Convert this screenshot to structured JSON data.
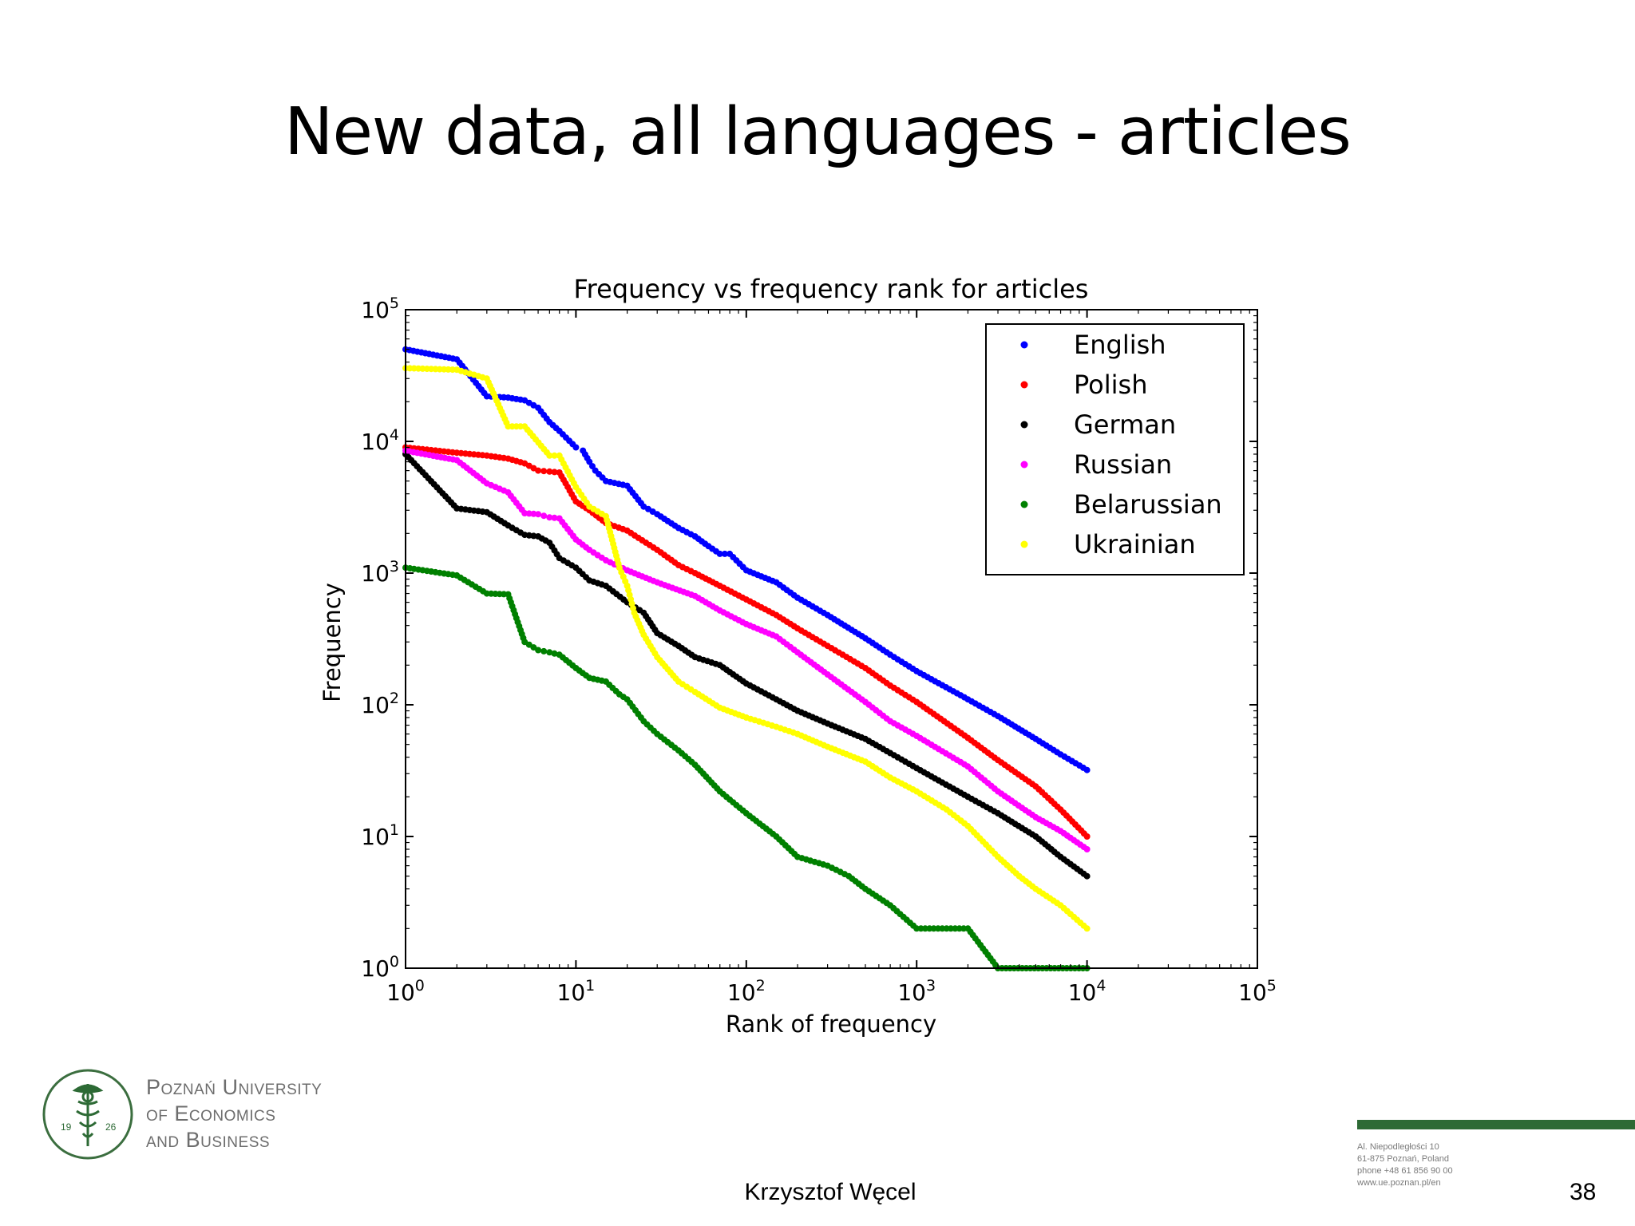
{
  "slide": {
    "title": "New data, all languages - articles",
    "author": "Krzysztof Węcel",
    "page_number": "38"
  },
  "logo": {
    "lines": [
      "Poznań University",
      "of Economics",
      "and Business"
    ],
    "year_left": "19",
    "year_right": "26"
  },
  "footer_address": {
    "lines": [
      "Al. Niepodległości 10",
      "61-875 Poznań, Poland",
      "phone +48 61 856 90 00",
      "www.ue.poznan.pl/en"
    ]
  },
  "colors": {
    "accent_green": "#2d6a35"
  },
  "chart_data": {
    "type": "scatter",
    "title": "Frequency vs frequency rank for articles",
    "xlabel": "Rank of frequency",
    "ylabel": "Frequency",
    "x_scale": "log",
    "y_scale": "log",
    "xlim": [
      1,
      100000
    ],
    "ylim": [
      1,
      100000
    ],
    "x_ticks": [
      1,
      10,
      100,
      1000,
      10000,
      100000
    ],
    "x_tick_labels": [
      {
        "base": "10",
        "exp": "0"
      },
      {
        "base": "10",
        "exp": "1"
      },
      {
        "base": "10",
        "exp": "2"
      },
      {
        "base": "10",
        "exp": "3"
      },
      {
        "base": "10",
        "exp": "4"
      },
      {
        "base": "10",
        "exp": "5"
      }
    ],
    "y_ticks": [
      1,
      10,
      100,
      1000,
      10000,
      100000
    ],
    "y_tick_labels": [
      {
        "base": "10",
        "exp": "0"
      },
      {
        "base": "10",
        "exp": "1"
      },
      {
        "base": "10",
        "exp": "2"
      },
      {
        "base": "10",
        "exp": "3"
      },
      {
        "base": "10",
        "exp": "4"
      },
      {
        "base": "10",
        "exp": "5"
      }
    ],
    "grid": false,
    "legend_position": "top-right",
    "series": [
      {
        "name": "English",
        "color": "#0000ff",
        "points": [
          [
            1,
            50000
          ],
          [
            2,
            42000
          ],
          [
            3,
            22000
          ],
          [
            4,
            21500
          ],
          [
            5,
            20500
          ],
          [
            6,
            18000
          ],
          [
            7,
            14000
          ],
          [
            8,
            12000
          ],
          [
            10,
            9000
          ],
          [
            11,
            8500
          ],
          [
            12,
            7000
          ],
          [
            13,
            6000
          ],
          [
            15,
            5000
          ],
          [
            20,
            4600
          ],
          [
            25,
            3200
          ],
          [
            30,
            2800
          ],
          [
            40,
            2200
          ],
          [
            50,
            1900
          ],
          [
            60,
            1600
          ],
          [
            70,
            1400
          ],
          [
            80,
            1400
          ],
          [
            100,
            1050
          ],
          [
            150,
            850
          ],
          [
            200,
            650
          ],
          [
            300,
            480
          ],
          [
            500,
            320
          ],
          [
            700,
            240
          ],
          [
            1000,
            180
          ],
          [
            2000,
            110
          ],
          [
            3000,
            82
          ],
          [
            5000,
            55
          ],
          [
            7000,
            42
          ],
          [
            10000,
            32
          ]
        ]
      },
      {
        "name": "Polish",
        "color": "#ff0000",
        "points": [
          [
            1,
            9000
          ],
          [
            2,
            8200
          ],
          [
            3,
            7800
          ],
          [
            4,
            7400
          ],
          [
            5,
            6800
          ],
          [
            6,
            6000
          ],
          [
            7,
            5900
          ],
          [
            8,
            5800
          ],
          [
            10,
            3500
          ],
          [
            12,
            3000
          ],
          [
            15,
            2400
          ],
          [
            20,
            2100
          ],
          [
            30,
            1500
          ],
          [
            40,
            1150
          ],
          [
            50,
            1000
          ],
          [
            70,
            800
          ],
          [
            100,
            630
          ],
          [
            150,
            480
          ],
          [
            200,
            380
          ],
          [
            300,
            280
          ],
          [
            500,
            190
          ],
          [
            700,
            140
          ],
          [
            1000,
            105
          ],
          [
            2000,
            56
          ],
          [
            3000,
            38
          ],
          [
            5000,
            24
          ],
          [
            7000,
            16
          ],
          [
            10000,
            10
          ]
        ]
      },
      {
        "name": "German",
        "color": "#000000",
        "points": [
          [
            1,
            8000
          ],
          [
            2,
            3100
          ],
          [
            3,
            2900
          ],
          [
            4,
            2300
          ],
          [
            5,
            1950
          ],
          [
            6,
            1900
          ],
          [
            7,
            1700
          ],
          [
            8,
            1300
          ],
          [
            10,
            1100
          ],
          [
            12,
            880
          ],
          [
            15,
            800
          ],
          [
            20,
            600
          ],
          [
            25,
            500
          ],
          [
            30,
            350
          ],
          [
            40,
            280
          ],
          [
            50,
            230
          ],
          [
            70,
            200
          ],
          [
            100,
            145
          ],
          [
            150,
            110
          ],
          [
            200,
            90
          ],
          [
            300,
            72
          ],
          [
            500,
            55
          ],
          [
            700,
            43
          ],
          [
            1000,
            33
          ],
          [
            2000,
            20
          ],
          [
            3000,
            15
          ],
          [
            5000,
            10
          ],
          [
            7000,
            7
          ],
          [
            10000,
            5
          ]
        ]
      },
      {
        "name": "Russian",
        "color": "#ff00ff",
        "points": [
          [
            1,
            8500
          ],
          [
            2,
            7200
          ],
          [
            3,
            4800
          ],
          [
            4,
            4100
          ],
          [
            5,
            2850
          ],
          [
            6,
            2800
          ],
          [
            7,
            2650
          ],
          [
            8,
            2600
          ],
          [
            10,
            1800
          ],
          [
            12,
            1500
          ],
          [
            15,
            1250
          ],
          [
            20,
            1050
          ],
          [
            30,
            850
          ],
          [
            50,
            670
          ],
          [
            70,
            520
          ],
          [
            100,
            410
          ],
          [
            150,
            330
          ],
          [
            200,
            250
          ],
          [
            300,
            170
          ],
          [
            500,
            105
          ],
          [
            700,
            75
          ],
          [
            1000,
            58
          ],
          [
            2000,
            34
          ],
          [
            3000,
            22
          ],
          [
            5000,
            14
          ],
          [
            7000,
            11
          ],
          [
            10000,
            8
          ]
        ]
      },
      {
        "name": "Belarussian",
        "color": "#008000",
        "points": [
          [
            1,
            1100
          ],
          [
            2,
            960
          ],
          [
            3,
            700
          ],
          [
            4,
            690
          ],
          [
            5,
            300
          ],
          [
            6,
            260
          ],
          [
            7,
            250
          ],
          [
            8,
            240
          ],
          [
            10,
            190
          ],
          [
            12,
            160
          ],
          [
            15,
            150
          ],
          [
            18,
            120
          ],
          [
            20,
            110
          ],
          [
            25,
            75
          ],
          [
            30,
            60
          ],
          [
            40,
            45
          ],
          [
            50,
            35
          ],
          [
            70,
            22
          ],
          [
            100,
            15
          ],
          [
            150,
            10
          ],
          [
            200,
            7
          ],
          [
            300,
            6
          ],
          [
            400,
            5
          ],
          [
            500,
            4
          ],
          [
            700,
            3
          ],
          [
            1000,
            2
          ],
          [
            2000,
            2
          ],
          [
            3000,
            1
          ],
          [
            10000,
            1
          ]
        ]
      },
      {
        "name": "Ukrainian",
        "color": "#ffff00",
        "points": [
          [
            1,
            36000
          ],
          [
            2,
            35000
          ],
          [
            3,
            30000
          ],
          [
            4,
            13000
          ],
          [
            5,
            13000
          ],
          [
            7,
            7800
          ],
          [
            8,
            7800
          ],
          [
            10,
            4500
          ],
          [
            12,
            3200
          ],
          [
            15,
            2700
          ],
          [
            18,
            1100
          ],
          [
            20,
            800
          ],
          [
            22,
            500
          ],
          [
            25,
            340
          ],
          [
            30,
            230
          ],
          [
            40,
            150
          ],
          [
            50,
            125
          ],
          [
            70,
            95
          ],
          [
            100,
            80
          ],
          [
            150,
            68
          ],
          [
            200,
            60
          ],
          [
            300,
            48
          ],
          [
            500,
            37
          ],
          [
            700,
            28
          ],
          [
            1000,
            22
          ],
          [
            1500,
            16
          ],
          [
            2000,
            12
          ],
          [
            3000,
            7
          ],
          [
            4000,
            5
          ],
          [
            5000,
            4
          ],
          [
            7000,
            3
          ],
          [
            10000,
            2
          ]
        ]
      }
    ]
  }
}
